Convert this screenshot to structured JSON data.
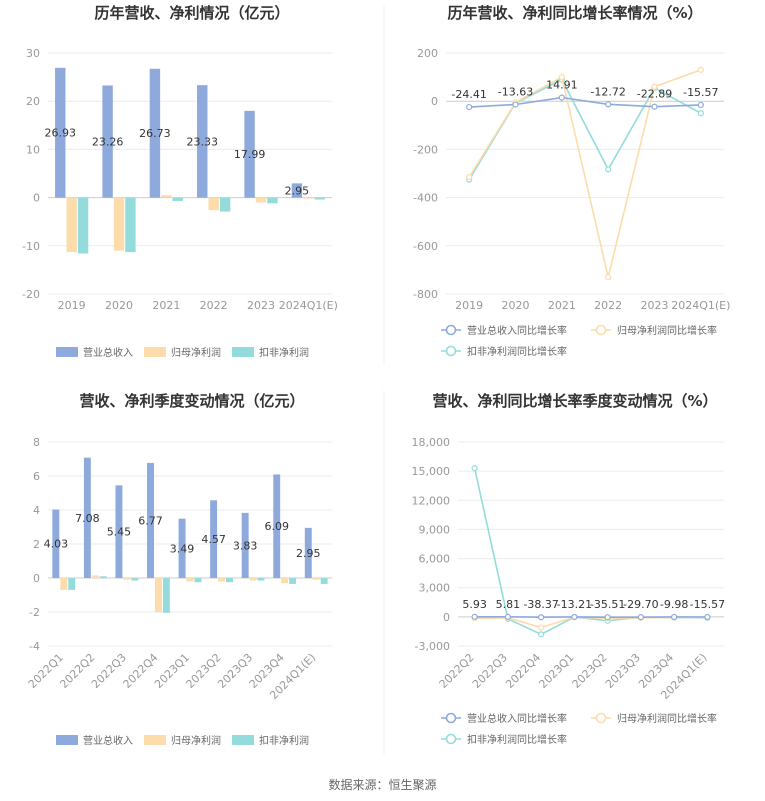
{
  "source": "数据来源：恒生聚源",
  "colors": {
    "revenue": "#8eaadc",
    "net_profit": "#fcdcaa",
    "deducted_profit": "#94dcdb",
    "grid": "#ebebeb",
    "axis_text": "#999999",
    "title": "#333333",
    "label": "#333333"
  },
  "chart_data": [
    {
      "type": "bar",
      "title": "历年营收、净利情况（亿元）",
      "categories": [
        "2019",
        "2020",
        "2021",
        "2022",
        "2023",
        "2024Q1(E)"
      ],
      "ylim": [
        -20,
        30
      ],
      "yticks": [
        30,
        20,
        10,
        0,
        -10,
        -20
      ],
      "grid": true,
      "legend_position": "bottom",
      "series": [
        {
          "name": "营业总收入",
          "values": [
            26.93,
            23.26,
            26.73,
            23.33,
            17.99,
            2.95
          ],
          "labels": [
            "26.93",
            "23.26",
            "26.73",
            "23.33",
            "17.99",
            "2.95"
          ]
        },
        {
          "name": "归母净利润",
          "values": [
            -11.3,
            -11.0,
            0.5,
            -2.6,
            -1.0,
            -0.2
          ]
        },
        {
          "name": "扣非净利润",
          "values": [
            -11.6,
            -11.3,
            -0.7,
            -2.9,
            -1.2,
            -0.4
          ]
        }
      ]
    },
    {
      "type": "line",
      "title": "历年营收、净利同比增长率情况（%）",
      "categories": [
        "2019",
        "2020",
        "2021",
        "2022",
        "2023",
        "2024Q1(E)"
      ],
      "ylim": [
        -800,
        200
      ],
      "yticks": [
        200,
        0,
        -200,
        -400,
        -600,
        -800
      ],
      "grid": true,
      "legend_position": "bottom",
      "series": [
        {
          "name": "营业总收入同比增长率",
          "values": [
            -24.41,
            -13.63,
            14.91,
            -12.72,
            -22.89,
            -15.57
          ],
          "labels": [
            "-24.41",
            "-13.63",
            "14.91",
            "-12.72",
            "-22.89",
            "-15.57"
          ]
        },
        {
          "name": "归母净利润同比增长率",
          "values": [
            -315,
            -5,
            100,
            -730,
            60,
            130
          ]
        },
        {
          "name": "扣非净利润同比增长率",
          "values": [
            -325,
            -8,
            90,
            -283,
            55,
            -50
          ]
        }
      ]
    },
    {
      "type": "bar",
      "title": "营收、净利季度变动情况（亿元）",
      "categories": [
        "2022Q1",
        "2022Q2",
        "2022Q3",
        "2022Q4",
        "2023Q1",
        "2023Q2",
        "2023Q3",
        "2023Q4",
        "2024Q1(E)"
      ],
      "ylim": [
        -4,
        8
      ],
      "yticks": [
        8,
        6,
        4,
        2,
        0,
        -2,
        -4
      ],
      "grid": true,
      "legend_position": "bottom",
      "series": [
        {
          "name": "营业总收入",
          "values": [
            4.03,
            7.08,
            5.45,
            6.77,
            3.49,
            4.57,
            3.83,
            6.09,
            2.95
          ],
          "labels": [
            "4.03",
            "7.08",
            "5.45",
            "6.77",
            "3.49",
            "4.57",
            "3.83",
            "6.09",
            "2.95"
          ]
        },
        {
          "name": "归母净利润",
          "values": [
            -0.7,
            0.15,
            -0.1,
            -2.0,
            -0.2,
            -0.2,
            -0.15,
            -0.3,
            -0.1
          ]
        },
        {
          "name": "扣非净利润",
          "values": [
            -0.7,
            0.1,
            -0.15,
            -2.05,
            -0.25,
            -0.25,
            -0.15,
            -0.35,
            -0.35
          ]
        }
      ]
    },
    {
      "type": "line",
      "title": "营收、净利同比增长率季度变动情况（%）",
      "categories": [
        "2022Q2",
        "2022Q3",
        "2022Q4",
        "2023Q1",
        "2023Q2",
        "2023Q3",
        "2023Q4",
        "2024Q1(E)"
      ],
      "ylim": [
        -3000,
        18000
      ],
      "yticks": [
        18000,
        15000,
        12000,
        9000,
        6000,
        3000,
        0,
        -3000
      ],
      "ytick_labels": [
        "18,000",
        "15,000",
        "12,000",
        "9,000",
        "6,000",
        "3,000",
        "0",
        "-3,000"
      ],
      "grid": true,
      "legend_position": "bottom",
      "series": [
        {
          "name": "营业总收入同比增长率",
          "values": [
            5.93,
            5.81,
            -38.37,
            -13.21,
            -35.51,
            -29.7,
            -9.98,
            -15.57
          ],
          "labels": [
            "5.93",
            "5.81",
            "-38.37",
            "-13.21",
            "-35.51",
            "-29.70",
            "-9.98",
            "-15.57"
          ]
        },
        {
          "name": "归母净利润同比增长率",
          "values": [
            -150,
            -100,
            -1100,
            -30,
            -150,
            -100,
            -60,
            -20
          ]
        },
        {
          "name": "扣非净利润同比增长率",
          "values": [
            15300,
            -200,
            -1800,
            -20,
            -400,
            -50,
            -80,
            -80
          ]
        }
      ]
    }
  ]
}
